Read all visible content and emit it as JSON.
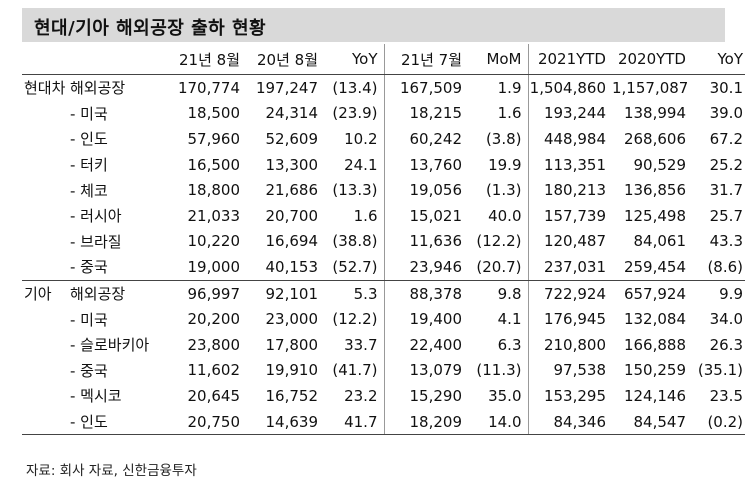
{
  "title": "현대/기아 해외공장 출하 현황",
  "columns": [
    "",
    "21년 8월",
    "20년 8월",
    "YoY",
    "21년 7월",
    "MoM",
    "2021YTD",
    "2020YTD",
    "YoY"
  ],
  "hyundai": {
    "category": "현대차",
    "total_label": "해외공장",
    "total_values": [
      "170,774",
      "197,247",
      "(13.4)",
      "167,509",
      "1.9",
      "1,504,860",
      "1,157,087",
      "30.1"
    ],
    "rows": [
      {
        "label": "- 미국",
        "values": [
          "18,500",
          "24,314",
          "(23.9)",
          "18,215",
          "1.6",
          "193,244",
          "138,994",
          "39.0"
        ]
      },
      {
        "label": "- 인도",
        "values": [
          "57,960",
          "52,609",
          "10.2",
          "60,242",
          "(3.8)",
          "448,984",
          "268,606",
          "67.2"
        ]
      },
      {
        "label": "- 터키",
        "values": [
          "16,500",
          "13,300",
          "24.1",
          "13,760",
          "19.9",
          "113,351",
          "90,529",
          "25.2"
        ]
      },
      {
        "label": "- 체코",
        "values": [
          "18,800",
          "21,686",
          "(13.3)",
          "19,056",
          "(1.3)",
          "180,213",
          "136,856",
          "31.7"
        ]
      },
      {
        "label": "- 러시아",
        "values": [
          "21,033",
          "20,700",
          "1.6",
          "15,021",
          "40.0",
          "157,739",
          "125,498",
          "25.7"
        ]
      },
      {
        "label": "- 브라질",
        "values": [
          "10,220",
          "16,694",
          "(38.8)",
          "11,636",
          "(12.2)",
          "120,487",
          "84,061",
          "43.3"
        ]
      },
      {
        "label": "- 중국",
        "values": [
          "19,000",
          "40,153",
          "(52.7)",
          "23,946",
          "(20.7)",
          "237,031",
          "259,454",
          "(8.6)"
        ]
      }
    ]
  },
  "kia": {
    "category": "기아",
    "total_label": "해외공장",
    "total_values": [
      "96,997",
      "92,101",
      "5.3",
      "88,378",
      "9.8",
      "722,924",
      "657,924",
      "9.9"
    ],
    "rows": [
      {
        "label": "- 미국",
        "values": [
          "20,200",
          "23,000",
          "(12.2)",
          "19,400",
          "4.1",
          "176,945",
          "132,084",
          "34.0"
        ]
      },
      {
        "label": "- 슬로바키아",
        "values": [
          "23,800",
          "17,800",
          "33.7",
          "22,400",
          "6.3",
          "210,800",
          "166,888",
          "26.3"
        ]
      },
      {
        "label": "- 중국",
        "values": [
          "11,602",
          "19,910",
          "(41.7)",
          "13,079",
          "(11.3)",
          "97,538",
          "150,259",
          "(35.1)"
        ]
      },
      {
        "label": "- 멕시코",
        "values": [
          "20,645",
          "16,752",
          "23.2",
          "15,290",
          "35.0",
          "153,295",
          "124,146",
          "23.5"
        ]
      },
      {
        "label": "- 인도",
        "values": [
          "20,750",
          "14,639",
          "41.7",
          "18,209",
          "14.0",
          "84,346",
          "84,547",
          "(0.2)"
        ]
      }
    ]
  },
  "source": "자료: 회사 자료, 신한금융투자"
}
